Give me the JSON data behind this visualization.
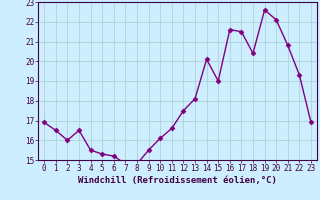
{
  "x": [
    0,
    1,
    2,
    3,
    4,
    5,
    6,
    7,
    8,
    9,
    10,
    11,
    12,
    13,
    14,
    15,
    16,
    17,
    18,
    19,
    20,
    21,
    22,
    23
  ],
  "y": [
    16.9,
    16.5,
    16.0,
    16.5,
    15.5,
    15.3,
    15.2,
    14.8,
    14.8,
    15.5,
    16.1,
    16.6,
    17.5,
    18.1,
    20.1,
    19.0,
    21.6,
    21.5,
    20.4,
    22.6,
    22.1,
    20.8,
    19.3,
    16.9
  ],
  "line_color": "#800080",
  "marker": "D",
  "marker_size": 2.5,
  "bg_color": "#cceeff",
  "grid_color": "#aacccc",
  "xlabel": "Windchill (Refroidissement éolien,°C)",
  "xlim_min": -0.5,
  "xlim_max": 23.5,
  "ylim_min": 15,
  "ylim_max": 23,
  "yticks": [
    15,
    16,
    17,
    18,
    19,
    20,
    21,
    22,
    23
  ],
  "xticks": [
    0,
    1,
    2,
    3,
    4,
    5,
    6,
    7,
    8,
    9,
    10,
    11,
    12,
    13,
    14,
    15,
    16,
    17,
    18,
    19,
    20,
    21,
    22,
    23
  ],
  "tick_fontsize": 5.5,
  "xlabel_fontsize": 6.5,
  "linewidth": 1.0
}
